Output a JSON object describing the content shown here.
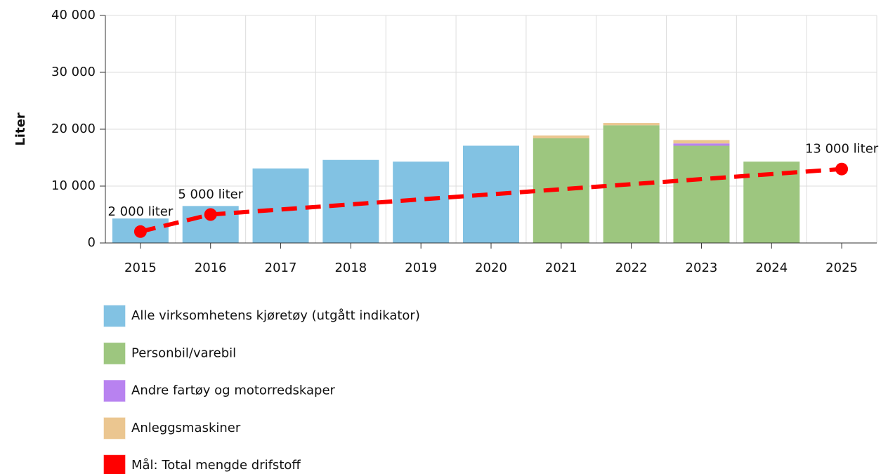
{
  "chart_data": {
    "type": "bar",
    "y_label": "Liter",
    "categories": [
      "2015",
      "2016",
      "2017",
      "2018",
      "2019",
      "2020",
      "2021",
      "2022",
      "2023",
      "2024",
      "2025"
    ],
    "series": [
      {
        "name": "Alle virksomhetens kjøretøy (utgått indikator)",
        "color": "#82c2e3",
        "values": [
          4300,
          6500,
          13100,
          14600,
          14300,
          17100,
          null,
          null,
          null,
          null,
          null
        ]
      },
      {
        "name": "Personbil/varebil",
        "color": "#9dc67f",
        "values": [
          null,
          null,
          null,
          null,
          null,
          null,
          18400,
          20700,
          17100,
          14300,
          null
        ]
      },
      {
        "name": "Andre fartøy og motorredskaper",
        "color": "#b882f0",
        "values": [
          null,
          null,
          null,
          null,
          null,
          null,
          null,
          null,
          400,
          null,
          null
        ]
      },
      {
        "name": "Anleggsmaskiner",
        "color": "#ebc690",
        "values": [
          null,
          null,
          null,
          null,
          null,
          null,
          500,
          400,
          600,
          null,
          null
        ]
      },
      {
        "name": "Mål: Total mengde drifstoff",
        "color": "#ff0000",
        "type": "line",
        "dashed": true,
        "values": [
          2000,
          5000,
          null,
          null,
          null,
          null,
          null,
          null,
          null,
          null,
          13000
        ],
        "value_labels": [
          "2 000 liter",
          "5 000 liter",
          null,
          null,
          null,
          null,
          null,
          null,
          null,
          null,
          "13 000 liter"
        ]
      }
    ],
    "stacked": true,
    "ylim": [
      0,
      40000
    ],
    "yticks": [
      0,
      {
        "value": 10000,
        "label": "10 000"
      },
      {
        "value": 20000,
        "label": "20 000"
      },
      {
        "value": 30000,
        "label": "30 000"
      },
      {
        "value": 40000,
        "label": "40 000"
      }
    ],
    "grid": true,
    "legend": "bottom"
  }
}
